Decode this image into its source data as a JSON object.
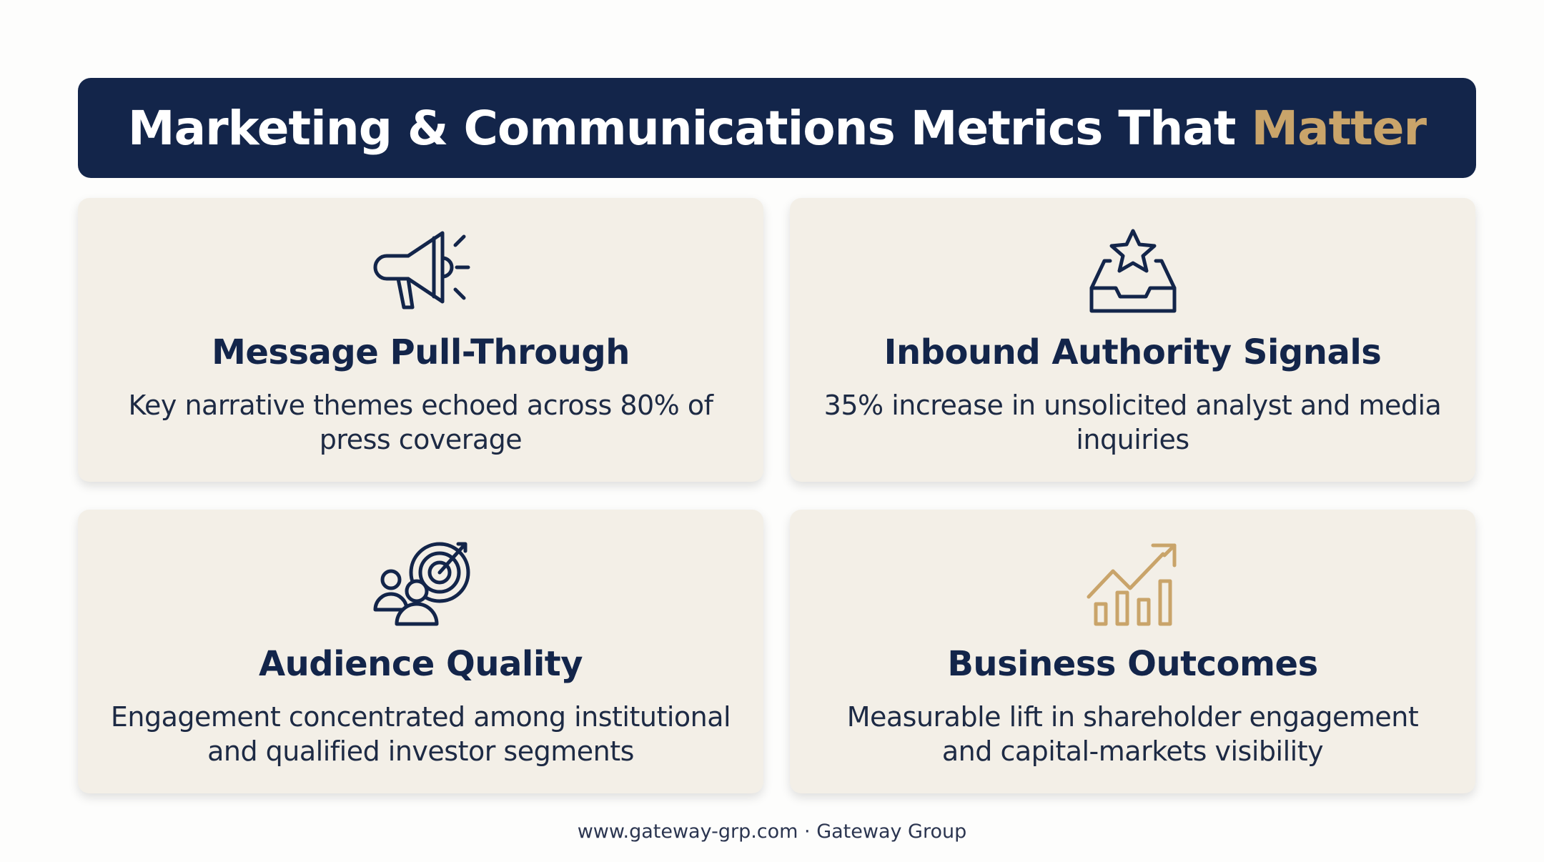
{
  "header": {
    "title_main": "Marketing & Communications Metrics That ",
    "title_accent": "Matter"
  },
  "cards": [
    {
      "title": "Message Pull-Through",
      "description": "Key narrative themes echoed across 80% of press coverage"
    },
    {
      "title": "Inbound Authority Signals",
      "description": "35% increase in unsolicited analyst and media inquiries"
    },
    {
      "title": "Audience Quality",
      "description": "Engagement concentrated among institutional and qualified investor segments"
    },
    {
      "title": "Business Outcomes",
      "description": "Measurable lift in shareholder engagement and capital-markets visibility"
    }
  ],
  "footer": "www.gateway-grp.com · Gateway Group"
}
